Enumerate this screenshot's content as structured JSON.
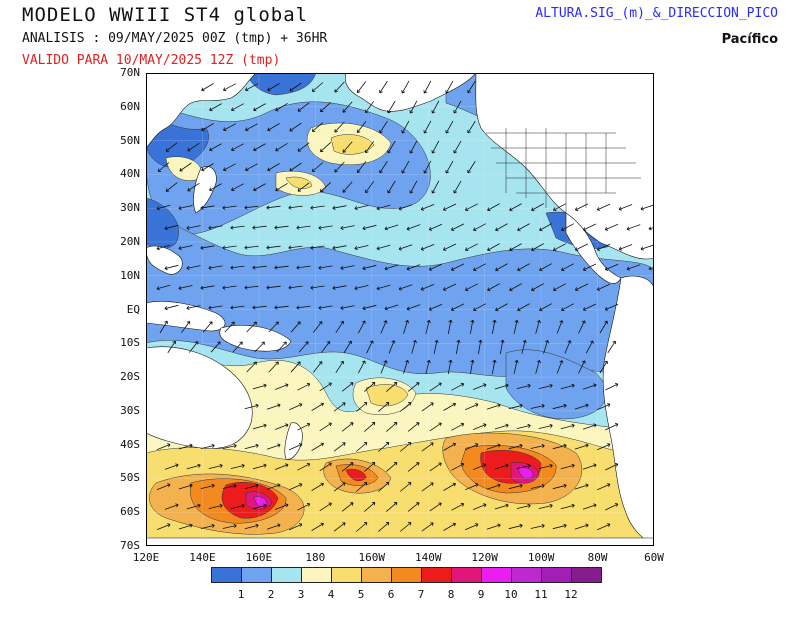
{
  "header": {
    "title": "MODELO WWIII ST4 global",
    "analysis": "ANALISIS : 09/MAY/2025 00Z  (tmp) + 36HR",
    "valid": "VALIDO PARA  10/MAY/2025 12Z  (tmp)",
    "variable": "ALTURA.SIG_(m)_&_DIRECCION_PICO",
    "region": "Pacífico"
  },
  "axes": {
    "lat_labels": [
      "70N",
      "60N",
      "50N",
      "40N",
      "30N",
      "20N",
      "10N",
      "EQ",
      "10S",
      "20S",
      "30S",
      "40S",
      "50S",
      "60S",
      "70S"
    ],
    "lon_labels": [
      "120E",
      "140E",
      "160E",
      "180",
      "160W",
      "140W",
      "120W",
      "100W",
      "80W",
      "60W"
    ]
  },
  "legend": {
    "colors": [
      "#3a73d8",
      "#6fa3ef",
      "#a6e5f0",
      "#fbf6c0",
      "#f7de6f",
      "#f4b24f",
      "#f28a1f",
      "#ec1c1c",
      "#e2167a",
      "#ea1ef0",
      "#bf28d0",
      "#a31eb4",
      "#871c8e"
    ],
    "labels": [
      "1",
      "2",
      "3",
      "4",
      "5",
      "6",
      "7",
      "8",
      "9",
      "10",
      "11",
      "12"
    ]
  }
}
